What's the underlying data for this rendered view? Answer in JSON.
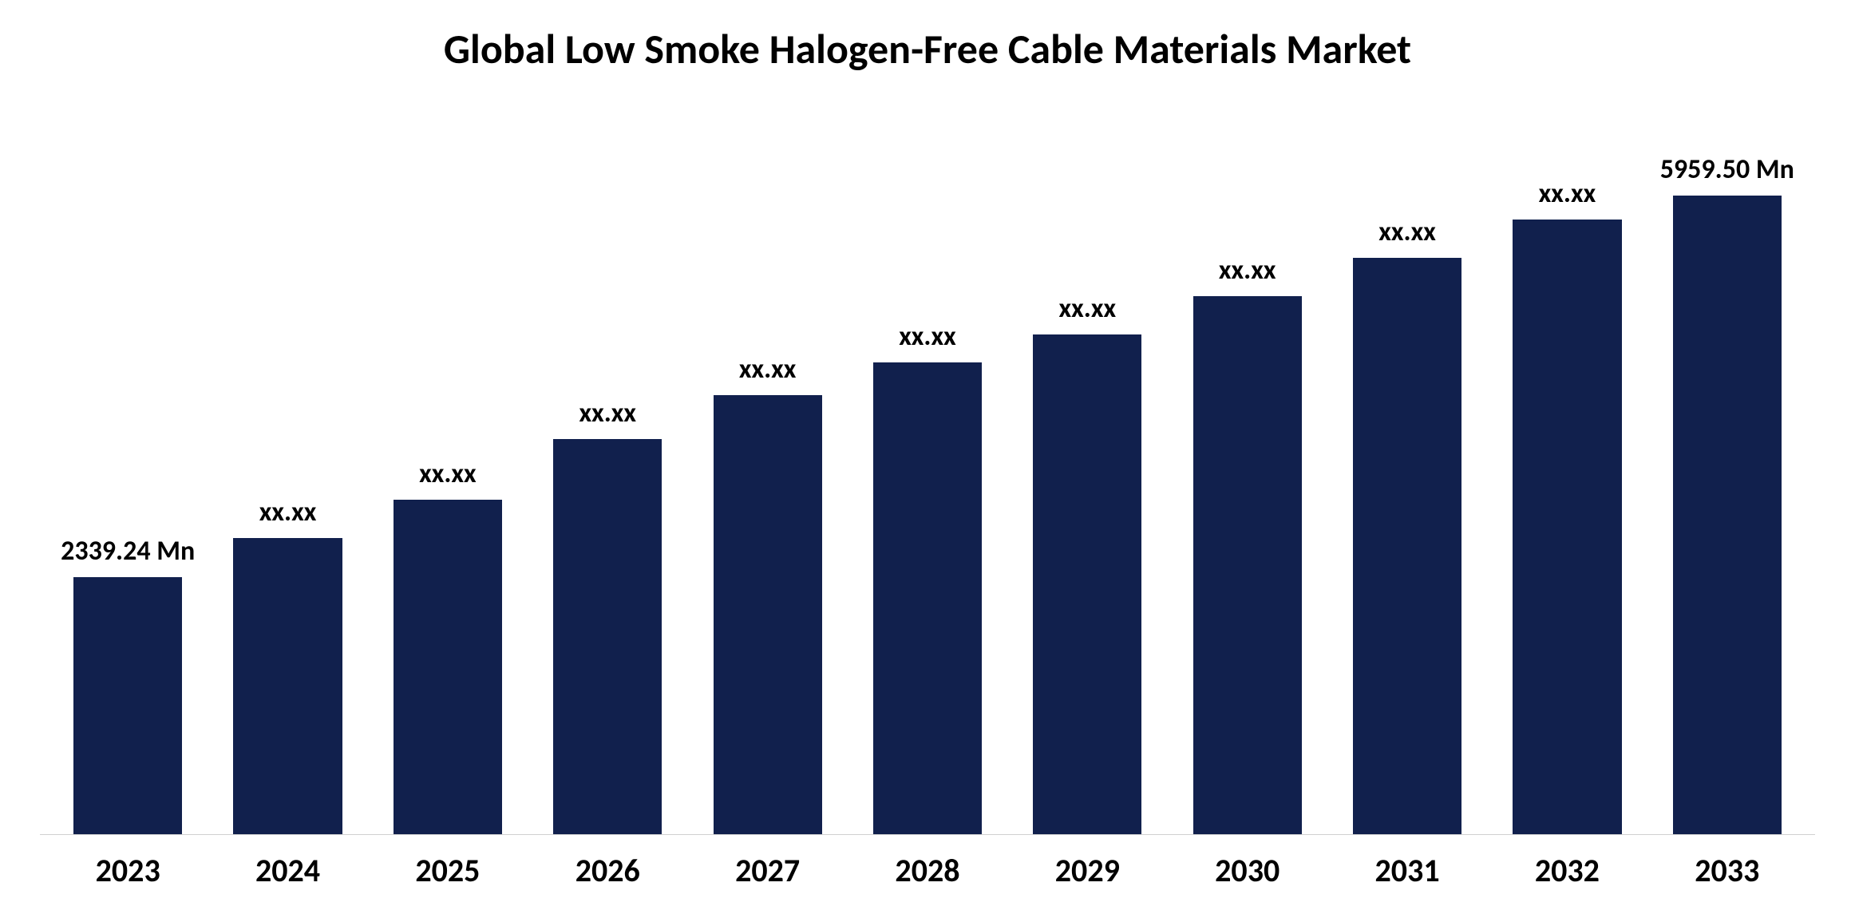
{
  "chart": {
    "type": "bar",
    "title": "Global Low Smoke Halogen-Free Cable Materials Market",
    "title_fontsize": 52,
    "title_color": "#000000",
    "background_color": "#ffffff",
    "bar_color": "#11204d",
    "bar_width": 0.68,
    "axis_line_color": "#d0d0d0",
    "label_fontsize": 34,
    "label_fontweight": 700,
    "label_color": "#000000",
    "xlabel_fontsize": 40,
    "xlabel_fontweight": 700,
    "xlabel_color": "#000000",
    "ylim": [
      0,
      6200
    ],
    "categories": [
      "2023",
      "2024",
      "2025",
      "2026",
      "2027",
      "2028",
      "2029",
      "2030",
      "2031",
      "2032",
      "2033"
    ],
    "values": [
      2339.24,
      2700,
      3050,
      3600,
      4000,
      4300,
      4550,
      4900,
      5250,
      5600,
      5959.5
    ],
    "value_labels": [
      "2339.24 Mn",
      "xx.xx",
      "xx.xx",
      "xx.xx",
      "xx.xx",
      "xx.xx",
      "xx.xx",
      "xx.xx",
      "xx.xx",
      "xx.xx",
      "5959.50 Mn"
    ]
  }
}
